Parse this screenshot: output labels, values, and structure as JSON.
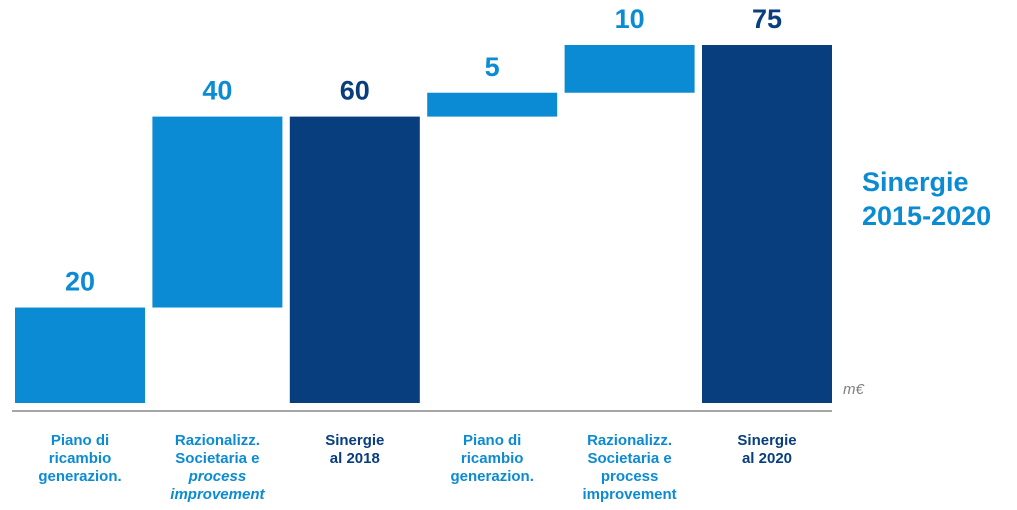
{
  "chart_data": {
    "type": "waterfall",
    "categories": [
      [
        "Piano di",
        "ricambio",
        "generazion."
      ],
      [
        "Razionalizz.",
        "Societaria e",
        "process",
        "improvement"
      ],
      [
        "Sinergie",
        "al 2018"
      ],
      [
        "Piano di",
        "ricambio",
        "generazion."
      ],
      [
        "Razionalizz.",
        "Societaria e",
        "process",
        "improvement"
      ],
      [
        "Sinergie",
        "al 2020"
      ]
    ],
    "values": [
      20,
      40,
      60,
      5,
      10,
      75
    ],
    "measures": [
      "relative",
      "relative",
      "total",
      "relative",
      "relative",
      "total"
    ],
    "colors": {
      "relative": "#0b8bd3",
      "total": "#083d7e"
    },
    "ylim": [
      0,
      75
    ],
    "annotation": [
      "Sinergie",
      "2015-2020"
    ],
    "unit": "m€"
  }
}
